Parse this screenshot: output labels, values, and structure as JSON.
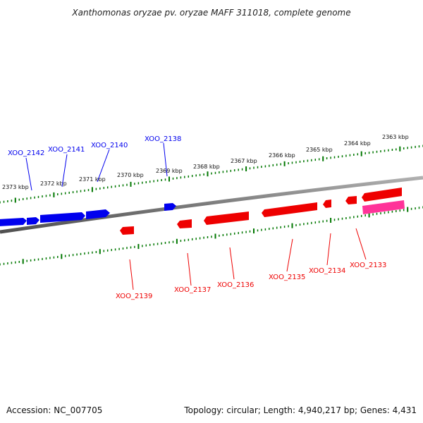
{
  "title": "Xanthomonas oryzae pv. oryzae MAFF 311018, complete genome",
  "accession": "Accession: NC_007705",
  "topology": "Topology: circular; Length: 4,940,217 bp; Genes: 4,431",
  "colors": {
    "forward_gene": "#0000ee",
    "reverse_gene": "#ee0000",
    "special_gene": "#ff3399",
    "tick": "#007700",
    "backbone": "#777777"
  },
  "scale_labels": [
    "2373 kbp",
    "2372 kbp",
    "2371 kbp",
    "2370 kbp",
    "2369 kbp",
    "2368 kbp",
    "2367 kbp",
    "2366 kbp",
    "2365 kbp",
    "2364 kbp",
    "2363 kbp"
  ],
  "forward_genes": [
    "XOO_2142",
    "XOO_2141",
    "XOO_2140",
    "XOO_2138"
  ],
  "reverse_genes": [
    "XOO_2139",
    "XOO_2137",
    "XOO_2136",
    "XOO_2135",
    "XOO_2134",
    "XOO_2133"
  ]
}
